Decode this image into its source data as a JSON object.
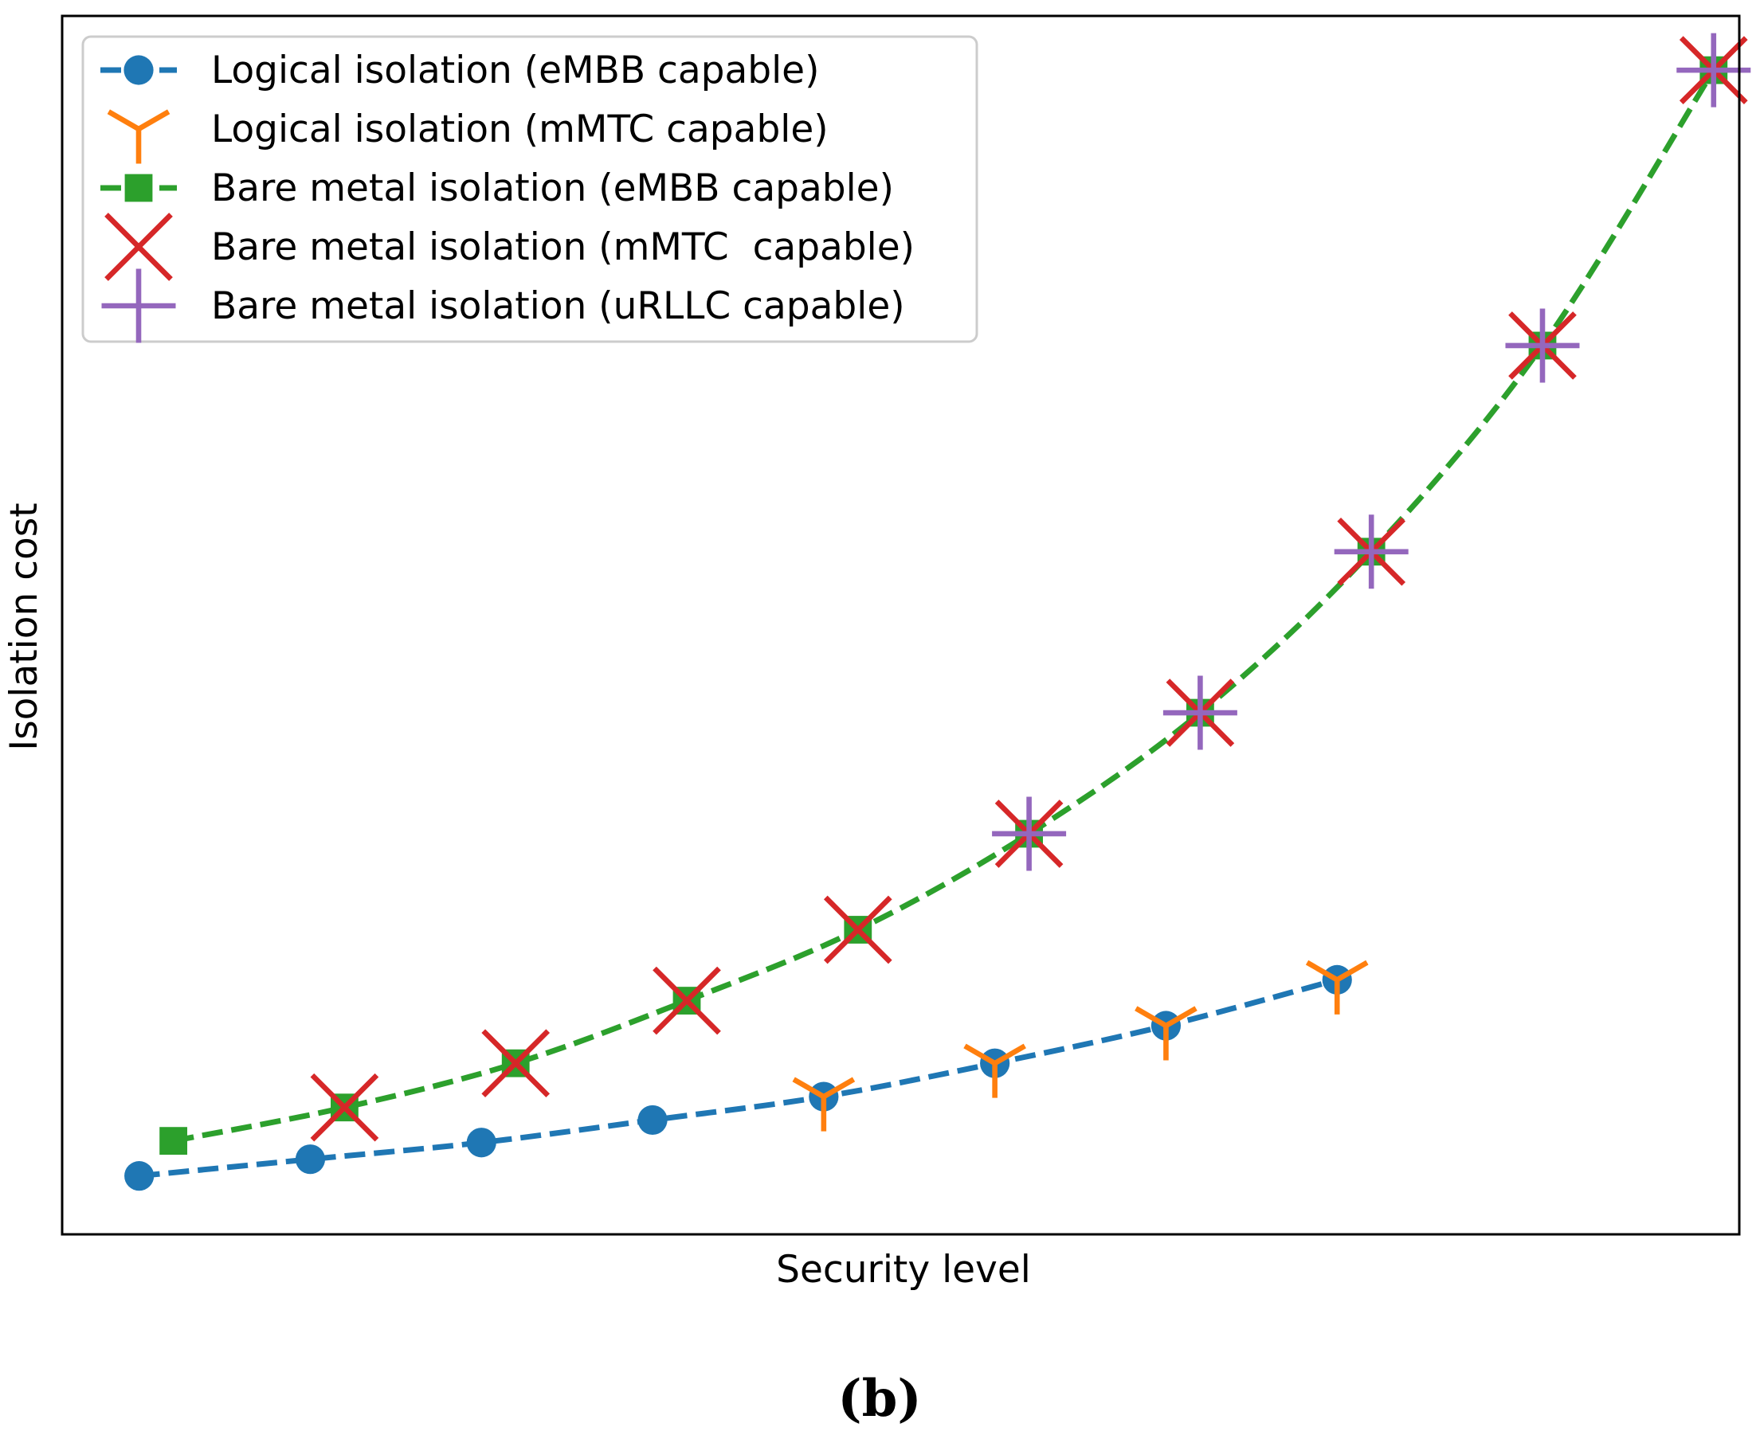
{
  "chart_data": {
    "type": "line",
    "title": "",
    "caption": "(b)",
    "xlabel": "Security level",
    "ylabel": "Isolation cost",
    "grid": false,
    "legend_position": "top-left",
    "xlim": [
      0.55,
      10.35
    ],
    "ylim": [
      -0.3,
      14.3
    ],
    "series": [
      {
        "name": "Logical isolation (eMBB capable)",
        "color": "#1f77b4",
        "marker": "circle",
        "line": "dashed",
        "x": [
          1,
          2,
          3,
          4,
          5,
          6,
          7,
          8
        ],
        "y": [
          0.4,
          0.6,
          0.8,
          1.07,
          1.35,
          1.75,
          2.2,
          2.75
        ]
      },
      {
        "name": "Logical isolation (mMTC capable)",
        "color": "#ff7f0e",
        "marker": "tri_down",
        "line": "none",
        "x": [
          5,
          6,
          7,
          8
        ],
        "y": [
          1.35,
          1.75,
          2.2,
          2.75
        ]
      },
      {
        "name": "Bare metal isolation (eMBB capable)",
        "color": "#2ca02c",
        "marker": "square",
        "line": "dashed",
        "x": [
          1.2,
          2.2,
          3.2,
          4.2,
          5.2,
          6.2,
          7.2,
          8.2,
          9.2,
          10.2
        ],
        "y": [
          0.82,
          1.22,
          1.75,
          2.5,
          3.35,
          4.5,
          5.95,
          7.88,
          10.35,
          13.65
        ]
      },
      {
        "name": "Bare metal isolation (mMTC  capable)",
        "color": "#d62728",
        "marker": "x",
        "line": "none",
        "x": [
          2.2,
          3.2,
          4.2,
          5.2,
          6.2,
          7.2,
          8.2,
          9.2,
          10.2
        ],
        "y": [
          1.22,
          1.75,
          2.5,
          3.35,
          4.5,
          5.95,
          7.88,
          10.35,
          13.65
        ]
      },
      {
        "name": "Bare metal isolation (uRLLC capable)",
        "color": "#9467bd",
        "marker": "plus",
        "line": "none",
        "x": [
          6.2,
          7.2,
          8.2,
          9.2,
          10.2
        ],
        "y": [
          4.5,
          5.95,
          7.88,
          10.35,
          13.65
        ]
      }
    ]
  }
}
